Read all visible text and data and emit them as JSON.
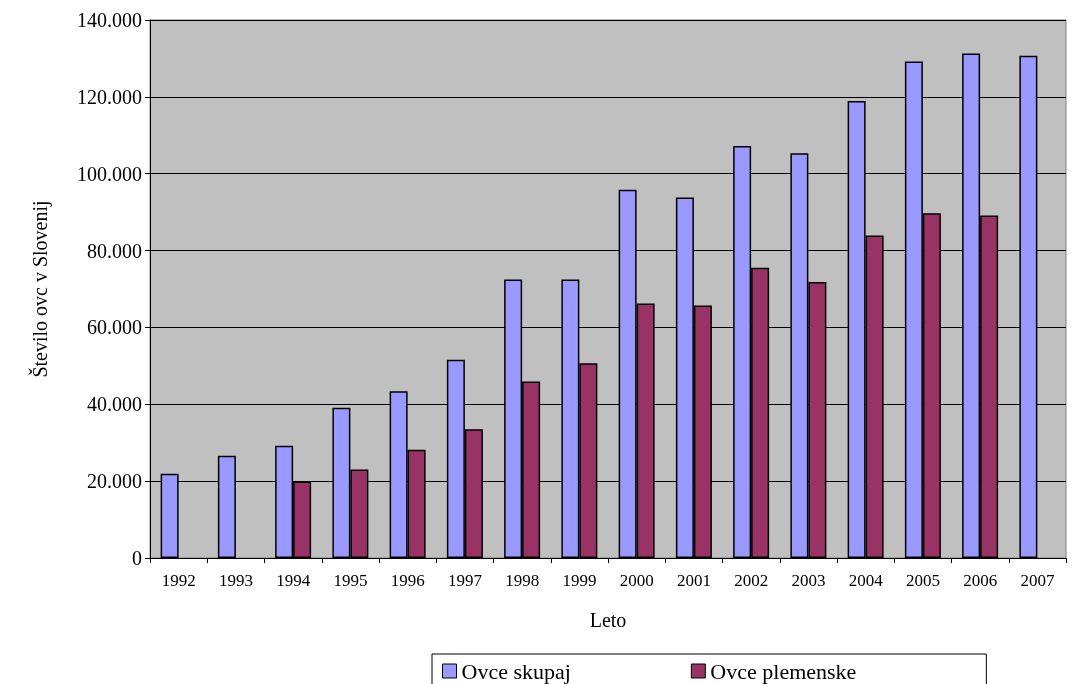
{
  "chart_data": {
    "type": "bar",
    "xlabel": "Leto",
    "ylabel": "Število ovc v Slovenij",
    "categories": [
      "1992",
      "1993",
      "1994",
      "1995",
      "1996",
      "1997",
      "1998",
      "1999",
      "2000",
      "2001",
      "2002",
      "2003",
      "2004",
      "2005",
      "2006",
      "2007"
    ],
    "series": [
      {
        "name": "Ovce skupaj",
        "color": "#9999ff",
        "values": [
          21900,
          26600,
          29200,
          39100,
          43400,
          51600,
          72500,
          72500,
          95800,
          93800,
          107200,
          105300,
          118900,
          129200,
          131300,
          130700
        ]
      },
      {
        "name": "Ovce plemenske",
        "color": "#993366",
        "values": [
          null,
          null,
          19900,
          23000,
          28200,
          33500,
          45900,
          50700,
          66200,
          65700,
          75500,
          71800,
          83900,
          89700,
          89100,
          null
        ]
      }
    ],
    "ylim": [
      0,
      140000
    ],
    "yticks": [
      {
        "value": 0,
        "label": "0"
      },
      {
        "value": 20000,
        "label": "20.000"
      },
      {
        "value": 40000,
        "label": "40.000"
      },
      {
        "value": 60000,
        "label": "60.000"
      },
      {
        "value": 80000,
        "label": "80.000"
      },
      {
        "value": 100000,
        "label": "100.000"
      },
      {
        "value": 120000,
        "label": "120.000"
      },
      {
        "value": 140000,
        "label": "140.000"
      }
    ],
    "grid": "y",
    "legend": "bottom"
  }
}
